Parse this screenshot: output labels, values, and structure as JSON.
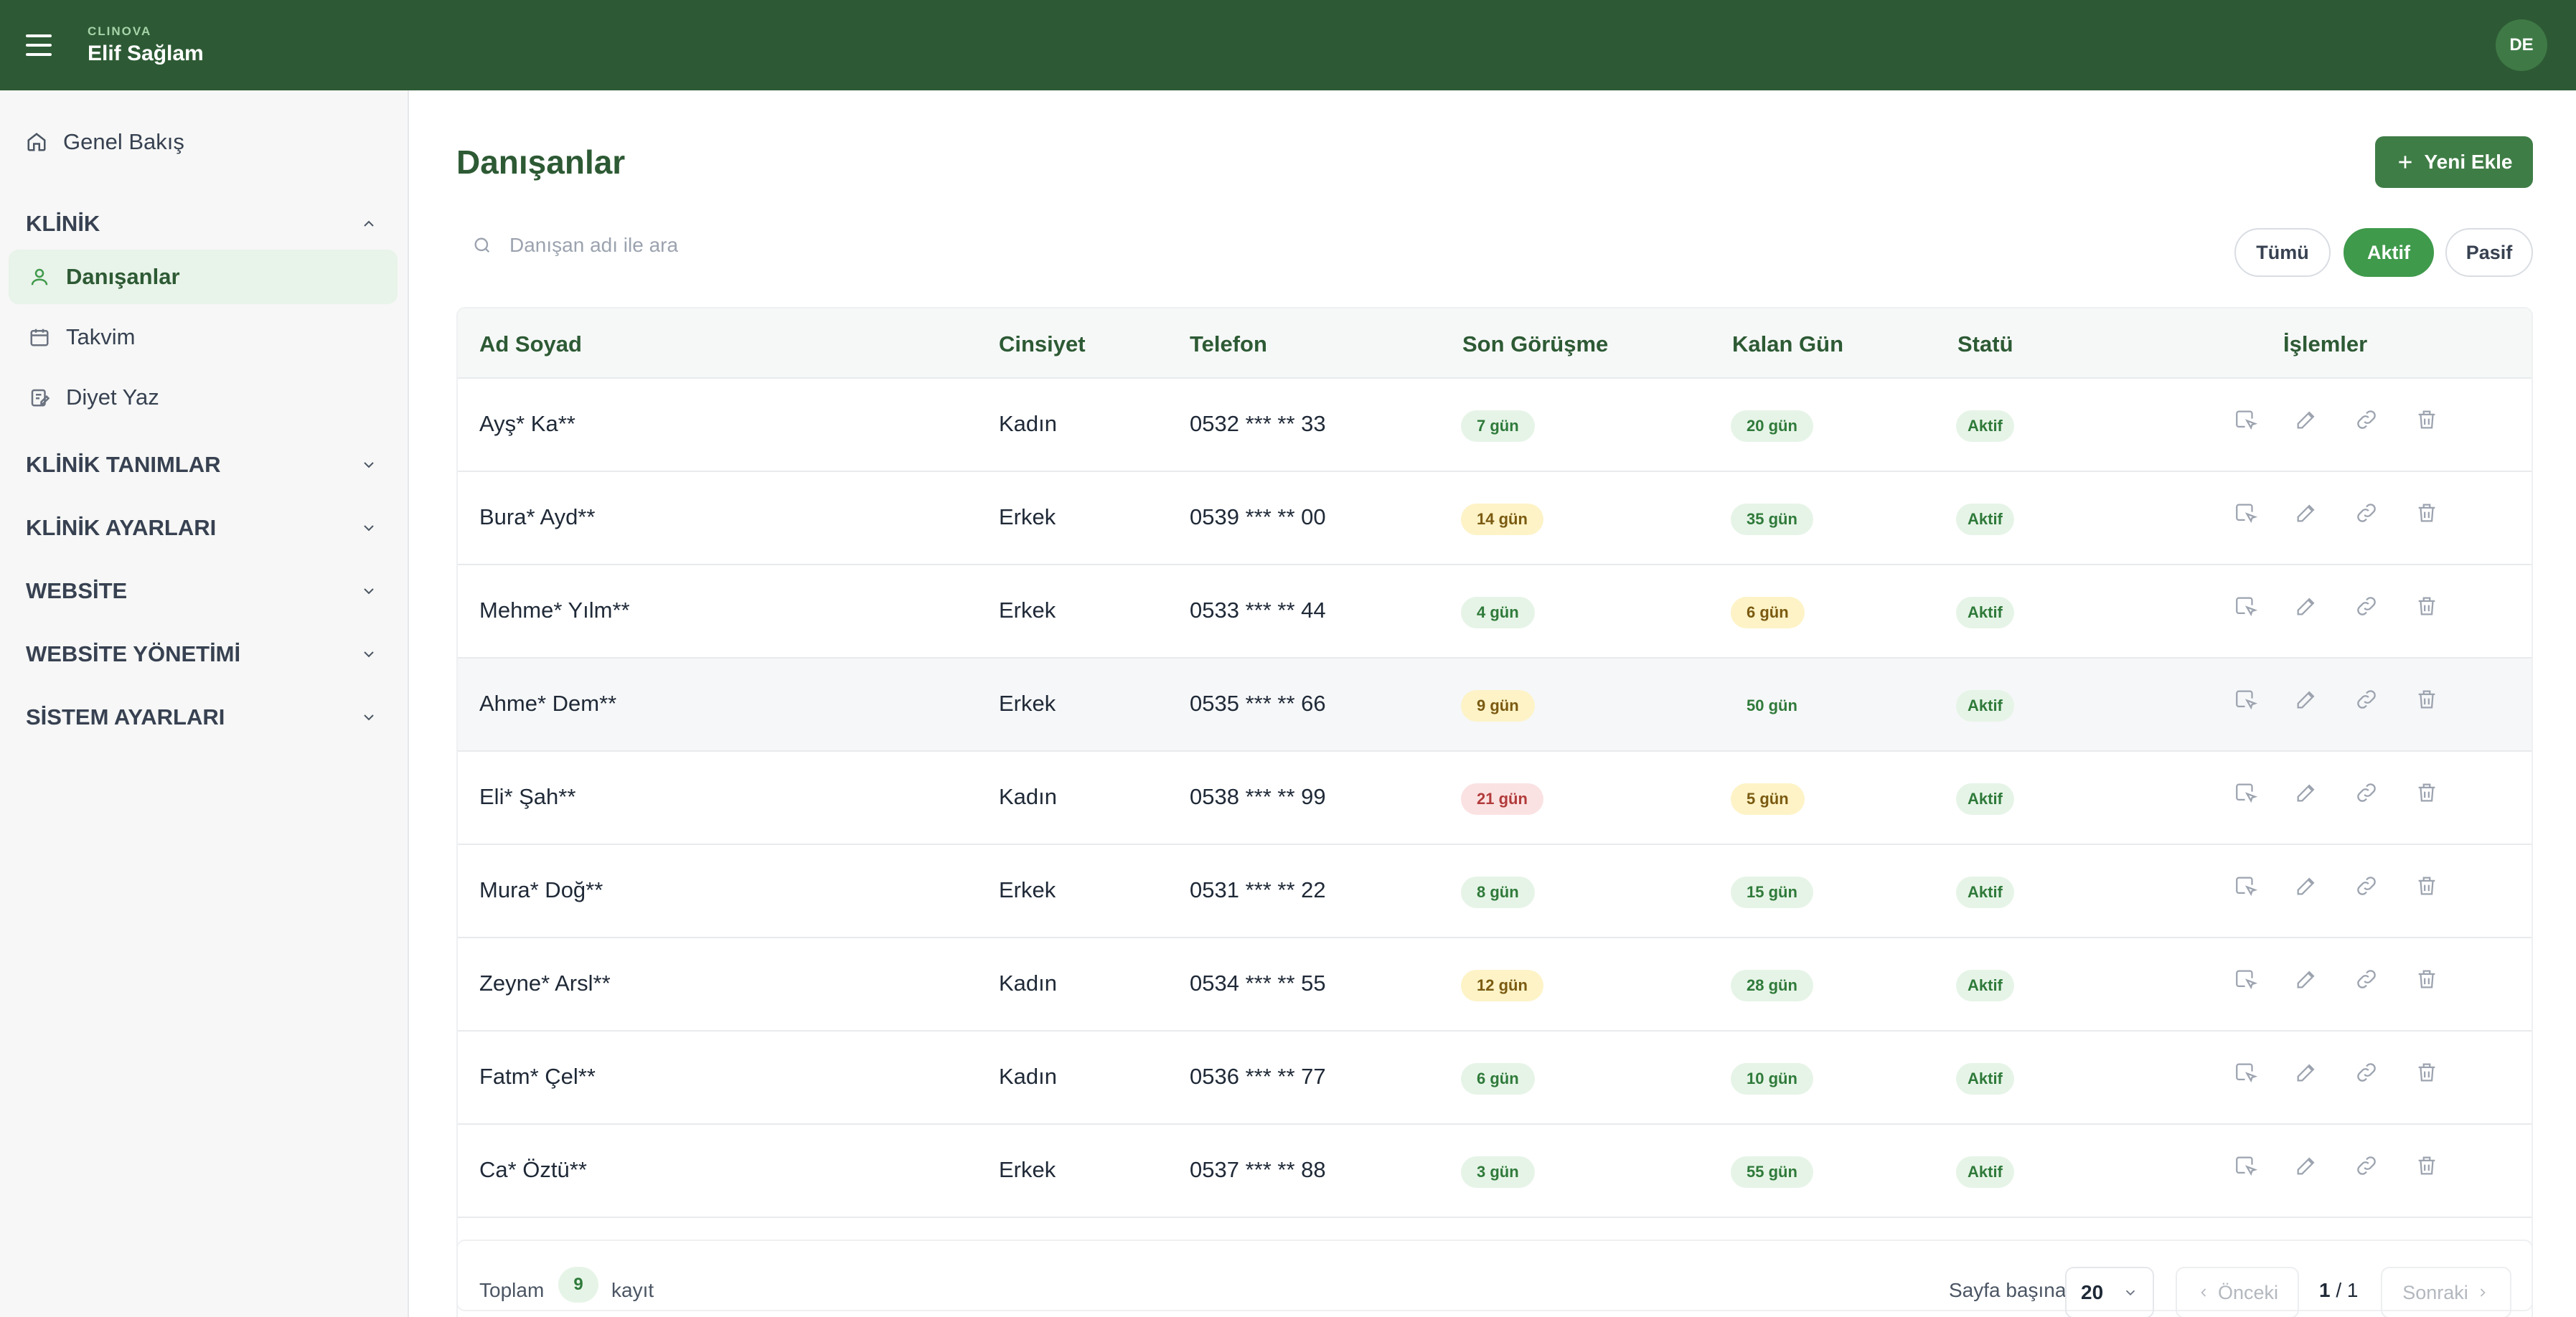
{
  "header": {
    "brand": "CLINOVA",
    "user_name": "Elif Sağlam",
    "avatar_initials": "DE"
  },
  "sidebar": {
    "overview": "Genel Bakış",
    "sections": {
      "klinik": "KLİNİK",
      "klinik_tanimlar": "KLİNİK TANIMLAR",
      "klinik_ayarlari": "KLİNİK AYARLARI",
      "website": "WEBSİTE",
      "website_yonetimi": "WEBSİTE YÖNETİMİ",
      "sistem_ayarlari": "SİSTEM AYARLARI"
    },
    "items": {
      "danisanlar": "Danışanlar",
      "takvim": "Takvim",
      "diyet_yaz": "Diyet Yaz"
    }
  },
  "page": {
    "title": "Danışanlar",
    "add_label": "Yeni Ekle",
    "search_placeholder": "Danışan adı ile ara"
  },
  "filters": {
    "all": "Tümü",
    "active": "Aktif",
    "passive": "Pasif",
    "selected": "Aktif"
  },
  "table": {
    "headers": {
      "name": "Ad Soyad",
      "gender": "Cinsiyet",
      "phone": "Telefon",
      "last": "Son Görüşme",
      "remaining": "Kalan Gün",
      "status": "Statü",
      "actions": "İşlemler"
    },
    "rows": [
      {
        "name": "Ayş* Ka**",
        "gender": "Kadın",
        "phone": "0532 *** ** 33",
        "last": "7 gün",
        "last_level": "green",
        "remaining": "20 gün",
        "remaining_level": "green",
        "status": "Aktif"
      },
      {
        "name": "Bura* Ayd**",
        "gender": "Erkek",
        "phone": "0539 *** ** 00",
        "last": "14 gün",
        "last_level": "yellow",
        "remaining": "35 gün",
        "remaining_level": "green",
        "status": "Aktif"
      },
      {
        "name": "Mehme* Yılm**",
        "gender": "Erkek",
        "phone": "0533 *** ** 44",
        "last": "4 gün",
        "last_level": "green",
        "remaining": "6 gün",
        "remaining_level": "yellow",
        "status": "Aktif"
      },
      {
        "name": "Ahme* Dem**",
        "gender": "Erkek",
        "phone": "0535 *** ** 66",
        "last": "9 gün",
        "last_level": "yellow",
        "remaining": "50 gün",
        "remaining_level": "none",
        "status": "Aktif"
      },
      {
        "name": "Eli* Şah**",
        "gender": "Kadın",
        "phone": "0538 *** ** 99",
        "last": "21 gün",
        "last_level": "red",
        "remaining": "5 gün",
        "remaining_level": "yellow",
        "status": "Aktif"
      },
      {
        "name": "Mura* Doğ**",
        "gender": "Erkek",
        "phone": "0531 *** ** 22",
        "last": "8 gün",
        "last_level": "green",
        "remaining": "15 gün",
        "remaining_level": "green",
        "status": "Aktif"
      },
      {
        "name": "Zeyne* Arsl**",
        "gender": "Kadın",
        "phone": "0534 *** ** 55",
        "last": "12 gün",
        "last_level": "yellow",
        "remaining": "28 gün",
        "remaining_level": "green",
        "status": "Aktif"
      },
      {
        "name": "Fatm* Çel**",
        "gender": "Kadın",
        "phone": "0536 *** ** 77",
        "last": "6 gün",
        "last_level": "green",
        "remaining": "10 gün",
        "remaining_level": "green",
        "status": "Aktif"
      },
      {
        "name": "Ca* Öztü**",
        "gender": "Erkek",
        "phone": "0537 *** ** 88",
        "last": "3 gün",
        "last_level": "green",
        "remaining": "55 gün",
        "remaining_level": "green",
        "status": "Aktif"
      }
    ]
  },
  "footer": {
    "total_label": "Toplam",
    "total_count": "9",
    "records_label": "kayıt",
    "per_page_label": "Sayfa başına",
    "per_page_value": "20",
    "prev_label": "Önceki",
    "page_current": "1",
    "page_total": "1",
    "next_label": "Sonraki"
  },
  "colors": {
    "header": "#2d5a34",
    "accent": "#3f9a4b"
  }
}
